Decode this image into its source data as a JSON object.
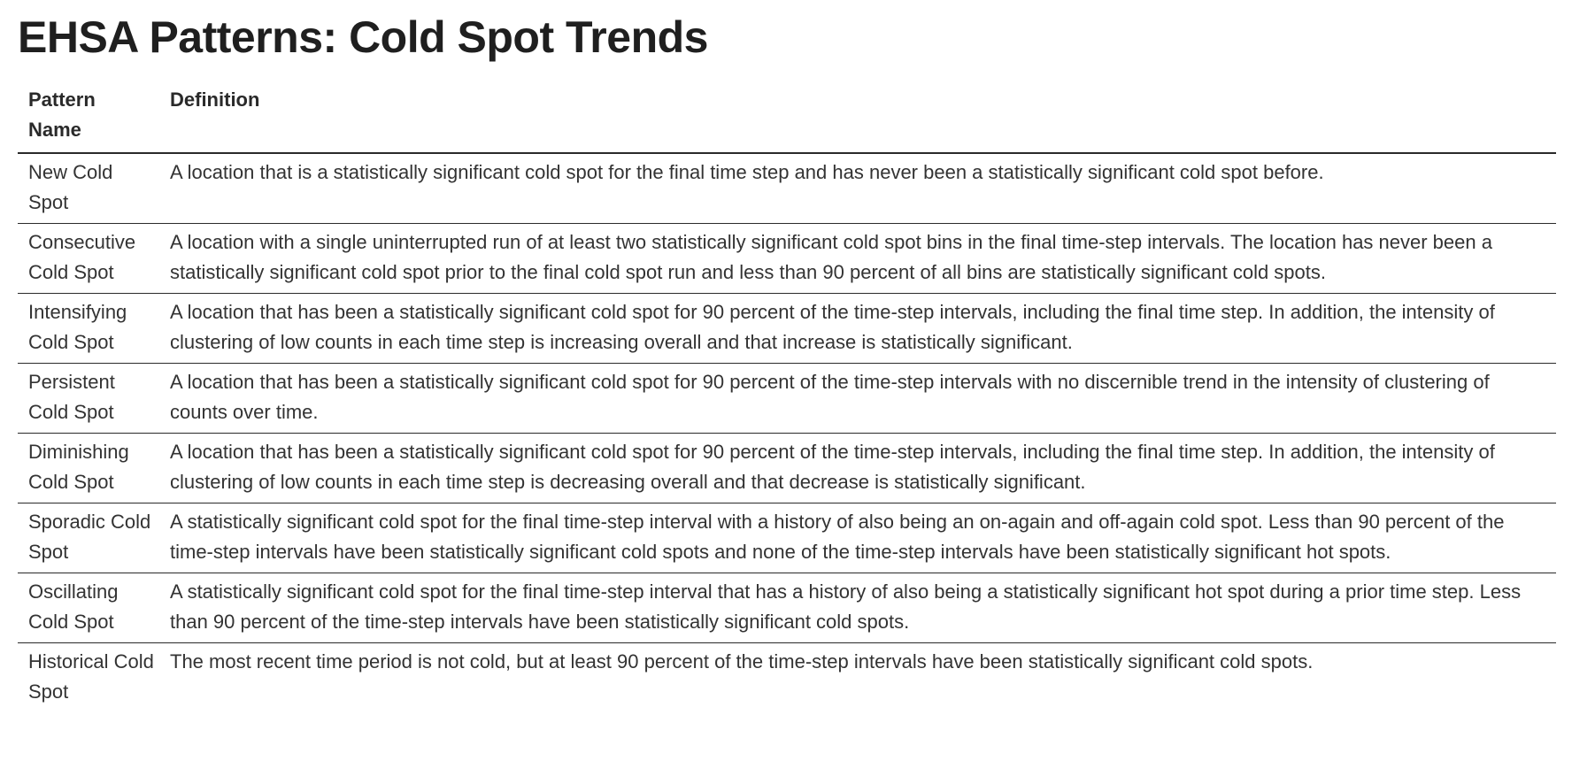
{
  "page": {
    "title": "EHSA Patterns: Cold Spot Trends"
  },
  "table": {
    "headers": {
      "name": "Pattern Name",
      "definition": "Definition"
    },
    "rows": [
      {
        "name": "New Cold Spot",
        "definition": "A location that is a statistically significant cold spot for the final time step and has never been a statistically significant cold spot before."
      },
      {
        "name": "Consecutive Cold Spot",
        "definition": "A location with a single uninterrupted run of at least two statistically significant cold spot bins in the final time-step intervals. The location has never been a statistically significant cold spot prior to the final cold spot run and less than 90 percent of all bins are statistically significant cold spots."
      },
      {
        "name": "Intensifying Cold Spot",
        "definition": "A location that has been a statistically significant cold spot for 90 percent of the time-step intervals, including the final time step. In addition, the intensity of clustering of low counts in each time step is increasing overall and that increase is statistically significant."
      },
      {
        "name": "Persistent Cold Spot",
        "definition": "A location that has been a statistically significant cold spot for 90 percent of the time-step intervals with no discernible trend in the intensity of clustering of counts over time."
      },
      {
        "name": "Diminishing Cold Spot",
        "definition": "A location that has been a statistically significant cold spot for 90 percent of the time-step intervals, including the final time step. In addition, the intensity of clustering of low counts in each time step is decreasing overall and that decrease is statistically significant."
      },
      {
        "name": "Sporadic Cold Spot",
        "definition": "A statistically significant cold spot for the final time-step interval with a history of also being an on-again and off-again cold spot. Less than 90 percent of the time-step intervals have been statistically significant cold spots and none of the time-step intervals have been statistically significant hot spots."
      },
      {
        "name": "Oscillating Cold Spot",
        "definition": "A statistically significant cold spot for the final time-step interval that has a history of also being a statistically significant hot spot during a prior time step. Less than 90 percent of the time-step intervals have been statistically significant cold spots."
      },
      {
        "name": "Historical Cold Spot",
        "definition": "The most recent time period is not cold, but at least 90 percent of the time-step intervals have been statistically significant cold spots."
      }
    ]
  }
}
